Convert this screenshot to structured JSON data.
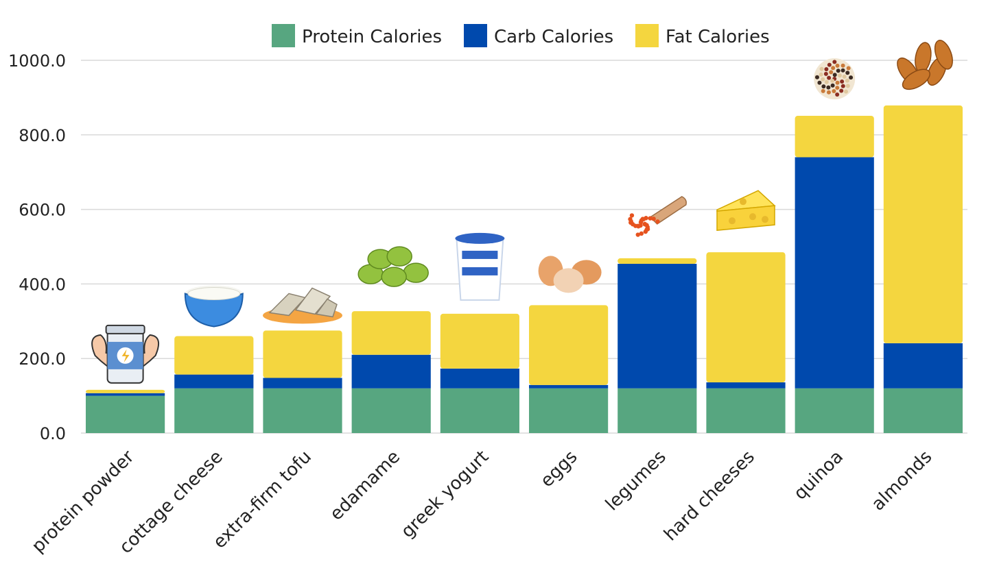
{
  "chart_data": {
    "type": "bar",
    "stacked": true,
    "title": "",
    "xlabel": "",
    "ylabel": "",
    "ylim": [
      0,
      1000
    ],
    "y_ticks": [
      "0.0",
      "200.0",
      "400.0",
      "600.0",
      "800.0",
      "1000.0"
    ],
    "y_tick_values": [
      0,
      200,
      400,
      600,
      800,
      1000
    ],
    "grid": true,
    "legend_position": "top-center",
    "categories": [
      "protein powder",
      "cottage cheese",
      "extra-firm tofu",
      "edamame",
      "greek yogurt",
      "eggs",
      "legumes",
      "hard cheeses",
      "quinoa",
      "almonds"
    ],
    "series": [
      {
        "name": "Protein Calories",
        "color": "#57a680",
        "values": [
          100,
          120,
          120,
          120,
          120,
          120,
          120,
          120,
          120,
          120
        ]
      },
      {
        "name": "Carb Calories",
        "color": "#0049ad",
        "values": [
          7,
          37,
          28,
          90,
          53,
          9,
          334,
          16,
          620,
          121
        ]
      },
      {
        "name": "Fat Calories",
        "color": "#f4d63f",
        "values": [
          9,
          103,
          127,
          117,
          147,
          214,
          15,
          349,
          111,
          638
        ]
      }
    ],
    "category_icons": [
      "protein-powder-icon",
      "cottage-cheese-icon",
      "tofu-icon",
      "edamame-icon",
      "greek-yogurt-icon",
      "eggs-icon",
      "lentils-icon",
      "cheese-wedge-icon",
      "quinoa-icon",
      "almonds-icon"
    ]
  }
}
